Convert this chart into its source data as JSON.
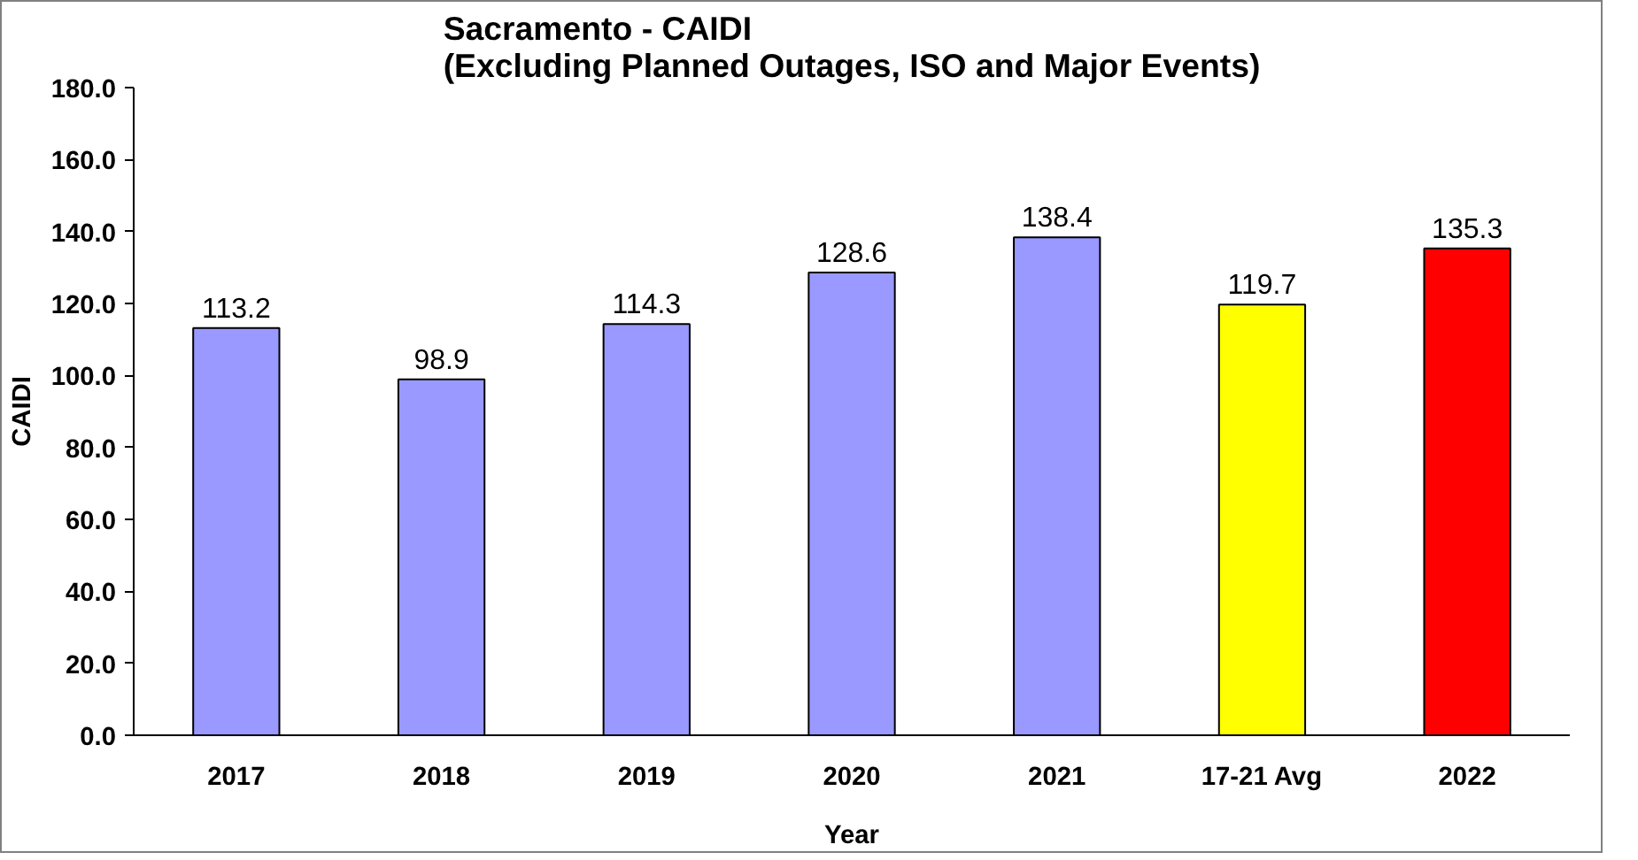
{
  "chart_data": {
    "type": "bar",
    "title": "Sacramento - CAIDI\n(Excluding Planned Outages, ISO and Major Events)",
    "xlabel": "Year",
    "ylabel": "CAIDI",
    "categories": [
      "2017",
      "2018",
      "2019",
      "2020",
      "2021",
      "17-21 Avg",
      "2022"
    ],
    "values": [
      113.2,
      98.9,
      114.3,
      128.6,
      138.4,
      119.7,
      135.3
    ],
    "colors": [
      "#9999ff",
      "#9999ff",
      "#9999ff",
      "#9999ff",
      "#9999ff",
      "#ffff00",
      "#ff0000"
    ],
    "ylim": [
      0,
      180
    ],
    "yticks": [
      {
        "value": 0,
        "label": "0.0"
      },
      {
        "value": 20,
        "label": "20.0"
      },
      {
        "value": 40,
        "label": "40.0"
      },
      {
        "value": 60,
        "label": "60.0"
      },
      {
        "value": 80,
        "label": "80.0"
      },
      {
        "value": 100,
        "label": "100.0"
      },
      {
        "value": 120,
        "label": "120.0"
      },
      {
        "value": 140,
        "label": "140.0"
      },
      {
        "value": 160,
        "label": "160.0"
      },
      {
        "value": 180,
        "label": "180.0"
      }
    ],
    "data_labels": true,
    "grid": false
  }
}
